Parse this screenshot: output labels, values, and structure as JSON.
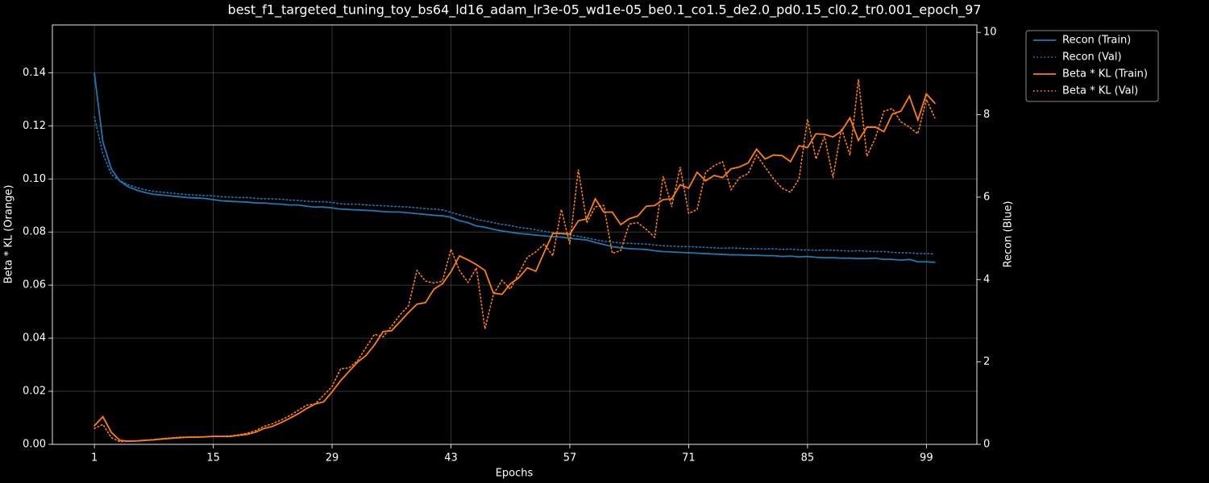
{
  "chart_data": {
    "type": "line",
    "title": "best_f1_targeted_tuning_toy_bs64_ld16_adam_lr3e-05_wd1e-05_be0.1_co1.5_de2.0_pd0.15_cl0.2_tr0.001_epoch_97",
    "xlabel": "Epochs",
    "ylabel": "Beta * KL (Orange)",
    "y2label": "Recon (Blue)",
    "x": [
      1,
      2,
      3,
      4,
      5,
      6,
      7,
      8,
      9,
      10,
      11,
      12,
      13,
      14,
      15,
      16,
      17,
      18,
      19,
      20,
      21,
      22,
      23,
      24,
      25,
      26,
      27,
      28,
      29,
      30,
      31,
      32,
      33,
      34,
      35,
      36,
      37,
      38,
      39,
      40,
      41,
      42,
      43,
      44,
      45,
      46,
      47,
      48,
      49,
      50,
      51,
      52,
      53,
      54,
      55,
      56,
      57,
      58,
      59,
      60,
      61,
      62,
      63,
      64,
      65,
      66,
      67,
      68,
      69,
      70,
      71,
      72,
      73,
      74,
      75,
      76,
      77,
      78,
      79,
      80,
      81,
      82,
      83,
      84,
      85,
      86,
      87,
      88,
      89,
      90,
      91,
      92,
      93,
      94,
      95,
      96,
      97,
      98,
      99,
      100
    ],
    "xlim": [
      -3.95,
      104.95
    ],
    "xticks": [
      1,
      15,
      29,
      43,
      57,
      71,
      85,
      99
    ],
    "ylim": [
      0,
      0.158
    ],
    "yticks": [
      {
        "value": 0,
        "label": "0.00"
      },
      {
        "value": 0.02,
        "label": "0.02"
      },
      {
        "value": 0.04,
        "label": "0.04"
      },
      {
        "value": 0.06,
        "label": "0.06"
      },
      {
        "value": 0.08,
        "label": "0.08"
      },
      {
        "value": 0.1,
        "label": "0.10"
      },
      {
        "value": 0.12,
        "label": "0.12"
      },
      {
        "value": 0.14,
        "label": "0.14"
      }
    ],
    "y2lim": [
      0,
      10.18
    ],
    "y2ticks": [
      0,
      2,
      4,
      6,
      8,
      10
    ],
    "grid": true,
    "legend": "outside-upper-right",
    "series": [
      {
        "name": "Recon (Train)",
        "color": "#1f77b4",
        "linestyle": "solid",
        "axis": "y2",
        "values": [
          9.0,
          7.34,
          6.68,
          6.39,
          6.25,
          6.17,
          6.11,
          6.07,
          6.05,
          6.03,
          6.01,
          5.99,
          5.98,
          5.97,
          5.94,
          5.91,
          5.9,
          5.89,
          5.88,
          5.86,
          5.86,
          5.84,
          5.83,
          5.81,
          5.81,
          5.78,
          5.76,
          5.76,
          5.74,
          5.71,
          5.7,
          5.69,
          5.68,
          5.67,
          5.65,
          5.64,
          5.64,
          5.62,
          5.6,
          5.58,
          5.56,
          5.55,
          5.51,
          5.43,
          5.38,
          5.3,
          5.27,
          5.22,
          5.18,
          5.15,
          5.12,
          5.1,
          5.08,
          5.06,
          5.04,
          5.03,
          5.0,
          4.98,
          4.96,
          4.9,
          4.85,
          4.8,
          4.77,
          4.75,
          4.74,
          4.73,
          4.7,
          4.68,
          4.67,
          4.66,
          4.65,
          4.64,
          4.63,
          4.62,
          4.61,
          4.6,
          4.6,
          4.59,
          4.59,
          4.58,
          4.58,
          4.56,
          4.57,
          4.55,
          4.56,
          4.54,
          4.53,
          4.53,
          4.52,
          4.52,
          4.51,
          4.51,
          4.52,
          4.49,
          4.49,
          4.47,
          4.49,
          4.43,
          4.43,
          4.42
        ]
      },
      {
        "name": "Recon (Val)",
        "color": "#1f77b4",
        "linestyle": "dotted",
        "axis": "y2",
        "values": [
          7.95,
          7.05,
          6.55,
          6.4,
          6.3,
          6.23,
          6.18,
          6.14,
          6.12,
          6.1,
          6.08,
          6.06,
          6.05,
          6.04,
          6.03,
          6.01,
          6.0,
          5.99,
          5.99,
          5.97,
          5.96,
          5.96,
          5.95,
          5.93,
          5.92,
          5.9,
          5.89,
          5.89,
          5.87,
          5.84,
          5.83,
          5.83,
          5.81,
          5.8,
          5.79,
          5.78,
          5.77,
          5.76,
          5.74,
          5.72,
          5.71,
          5.69,
          5.63,
          5.57,
          5.52,
          5.46,
          5.42,
          5.38,
          5.34,
          5.31,
          5.27,
          5.24,
          5.21,
          5.17,
          5.14,
          5.11,
          5.08,
          5.05,
          5.01,
          4.97,
          4.93,
          4.91,
          4.89,
          4.88,
          4.87,
          4.86,
          4.84,
          4.82,
          4.81,
          4.8,
          4.8,
          4.79,
          4.78,
          4.77,
          4.76,
          4.77,
          4.76,
          4.75,
          4.75,
          4.74,
          4.75,
          4.73,
          4.74,
          4.72,
          4.72,
          4.71,
          4.72,
          4.71,
          4.7,
          4.69,
          4.7,
          4.69,
          4.68,
          4.68,
          4.66,
          4.65,
          4.65,
          4.63,
          4.63,
          4.62
        ]
      },
      {
        "name": "Beta * KL (Train)",
        "color": "#ff7f0e",
        "linestyle": "solid",
        "axis": "y",
        "values": [
          0.007,
          0.0104,
          0.0045,
          0.0015,
          0.0012,
          0.0013,
          0.0015,
          0.0017,
          0.002,
          0.0023,
          0.0025,
          0.0027,
          0.0027,
          0.0028,
          0.003,
          0.003,
          0.003,
          0.0034,
          0.0038,
          0.0046,
          0.006,
          0.0068,
          0.0082,
          0.0098,
          0.0115,
          0.0135,
          0.0152,
          0.016,
          0.0198,
          0.024,
          0.0275,
          0.031,
          0.0335,
          0.0375,
          0.0425,
          0.0428,
          0.0462,
          0.0497,
          0.0528,
          0.0534,
          0.0585,
          0.0605,
          0.065,
          0.071,
          0.0695,
          0.0677,
          0.0655,
          0.057,
          0.0565,
          0.0605,
          0.0628,
          0.0665,
          0.0652,
          0.0725,
          0.0795,
          0.0795,
          0.0792,
          0.0842,
          0.085,
          0.0925,
          0.0875,
          0.0875,
          0.0828,
          0.085,
          0.086,
          0.0897,
          0.09,
          0.0922,
          0.0925,
          0.0978,
          0.0965,
          0.1025,
          0.0993,
          0.1013,
          0.1005,
          0.1038,
          0.1045,
          0.106,
          0.1112,
          0.1075,
          0.109,
          0.1088,
          0.1065,
          0.1125,
          0.1118,
          0.117,
          0.1168,
          0.1158,
          0.118,
          0.123,
          0.1145,
          0.1195,
          0.1195,
          0.1178,
          0.1245,
          0.1255,
          0.1312,
          0.1222,
          0.132,
          0.1285
        ]
      },
      {
        "name": "Beta * KL (Val)",
        "color": "#ff7f0e",
        "linestyle": "dotted",
        "axis": "y",
        "values": [
          0.006,
          0.0075,
          0.0025,
          0.001,
          0.0012,
          0.0013,
          0.0016,
          0.0018,
          0.0022,
          0.0024,
          0.0027,
          0.0028,
          0.0028,
          0.0029,
          0.0031,
          0.003,
          0.0032,
          0.0036,
          0.0042,
          0.0052,
          0.0068,
          0.0078,
          0.0092,
          0.0108,
          0.0128,
          0.0148,
          0.0152,
          0.0185,
          0.0218,
          0.0285,
          0.0288,
          0.0315,
          0.0365,
          0.0415,
          0.0405,
          0.0445,
          0.0488,
          0.0522,
          0.0655,
          0.0615,
          0.0608,
          0.0615,
          0.0735,
          0.0655,
          0.061,
          0.0665,
          0.0435,
          0.0565,
          0.0618,
          0.0585,
          0.0645,
          0.0705,
          0.0725,
          0.0755,
          0.071,
          0.0885,
          0.0755,
          0.1035,
          0.0835,
          0.0895,
          0.09,
          0.072,
          0.073,
          0.083,
          0.0835,
          0.081,
          0.078,
          0.101,
          0.0895,
          0.1045,
          0.087,
          0.0885,
          0.1025,
          0.105,
          0.1065,
          0.096,
          0.1005,
          0.102,
          0.109,
          0.1045,
          0.1,
          0.0965,
          0.095,
          0.1,
          0.1225,
          0.1075,
          0.116,
          0.1005,
          0.119,
          0.109,
          0.1375,
          0.1085,
          0.1155,
          0.1255,
          0.1265,
          0.1215,
          0.1195,
          0.117,
          0.13,
          0.123
        ]
      }
    ]
  }
}
